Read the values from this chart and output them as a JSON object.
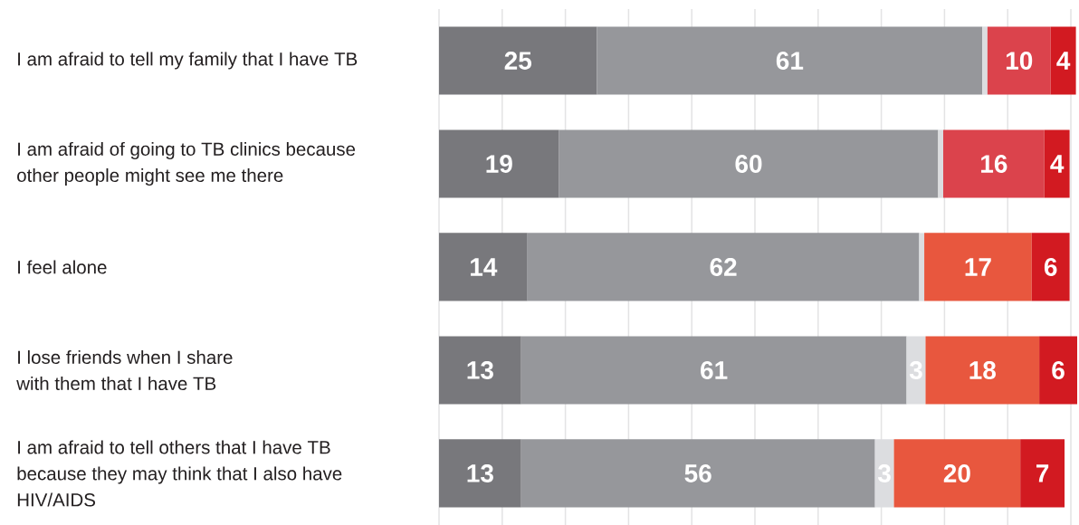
{
  "chart_data": {
    "type": "bar",
    "orientation": "horizontal",
    "stacked": true,
    "categories": [
      "I am afraid to tell my family that I have TB",
      "I am afraid of going to TB clinics because other people might see me there",
      "I feel alone",
      "I lose friends when I share with them that I have TB",
      "I am afraid to tell others that I have TB because they may think that I also have HIV/AIDS"
    ],
    "series": [
      {
        "color": "#78787c",
        "values": [
          25,
          19,
          14,
          13,
          13
        ],
        "value_labels": [
          "25",
          "19",
          "14",
          "13",
          "13"
        ]
      },
      {
        "color": "#96979b",
        "values": [
          61,
          60,
          62,
          61,
          56
        ],
        "value_labels": [
          "61",
          "60",
          "62",
          "61",
          "56"
        ]
      },
      {
        "color": "#dcdde0",
        "values": [
          0.8,
          0.8,
          0.8,
          3,
          3
        ],
        "value_labels": [
          null,
          null,
          null,
          "3",
          "3"
        ]
      },
      {
        "colors": [
          "#db434c",
          "#db434c",
          "#e8573e",
          "#e8573e",
          "#e8573e"
        ],
        "values": [
          10,
          16,
          17,
          18,
          20
        ],
        "value_labels": [
          "10",
          "16",
          "17",
          "18",
          "20"
        ]
      },
      {
        "color": "#d21a21",
        "values": [
          4,
          4,
          6,
          6,
          7
        ],
        "value_labels": [
          "4",
          "4",
          "6",
          "6",
          "7"
        ]
      }
    ],
    "xlim": [
      0,
      101
    ],
    "xticks": [
      {
        "value": 0,
        "label": null
      },
      {
        "value": 10,
        "label": null
      },
      {
        "value": 20,
        "label": null
      },
      {
        "value": 30,
        "label": null
      },
      {
        "value": 40,
        "label": null
      },
      {
        "value": 50,
        "label": null
      },
      {
        "value": 60,
        "label": null
      },
      {
        "value": 70,
        "label": null
      },
      {
        "value": 80,
        "label": null
      },
      {
        "value": 90,
        "label": null
      },
      {
        "value": 100,
        "label": null
      }
    ],
    "grid": "x",
    "tick_labels": "y"
  }
}
